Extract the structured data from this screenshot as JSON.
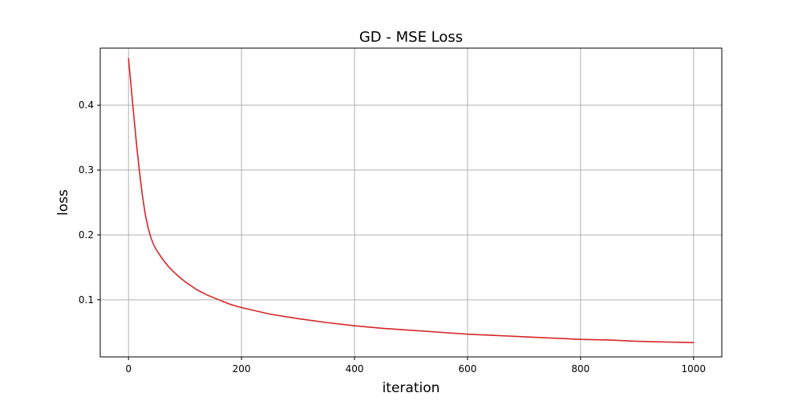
{
  "chart_data": {
    "type": "line",
    "title": "GD - MSE Loss",
    "xlabel": "iteration",
    "ylabel": "loss",
    "xlim": [
      -50,
      1050
    ],
    "ylim": [
      0.012,
      0.488
    ],
    "grid": true,
    "x_ticks": [
      0,
      200,
      400,
      600,
      800,
      1000
    ],
    "y_ticks": [
      0.1,
      0.2,
      0.3,
      0.4
    ],
    "x_tick_labels": [
      "0",
      "200",
      "400",
      "600",
      "800",
      "1000"
    ],
    "y_tick_labels": [
      "0.1",
      "0.2",
      "0.3",
      "0.4"
    ],
    "series": [
      {
        "color": "#d62728",
        "x": [
          0,
          5,
          10,
          15,
          20,
          25,
          30,
          35,
          40,
          45,
          50,
          60,
          70,
          80,
          90,
          100,
          120,
          140,
          160,
          180,
          200,
          250,
          300,
          350,
          400,
          450,
          500,
          550,
          600,
          650,
          700,
          750,
          800,
          850,
          900,
          950,
          1000
        ],
        "y": [
          0.472,
          0.425,
          0.378,
          0.333,
          0.293,
          0.258,
          0.23,
          0.21,
          0.195,
          0.184,
          0.176,
          0.163,
          0.152,
          0.143,
          0.135,
          0.128,
          0.116,
          0.107,
          0.1,
          0.093,
          0.088,
          0.078,
          0.071,
          0.065,
          0.06,
          0.056,
          0.053,
          0.05,
          0.047,
          0.045,
          0.043,
          0.041,
          0.039,
          0.038,
          0.036,
          0.035,
          0.034
        ]
      }
    ]
  }
}
